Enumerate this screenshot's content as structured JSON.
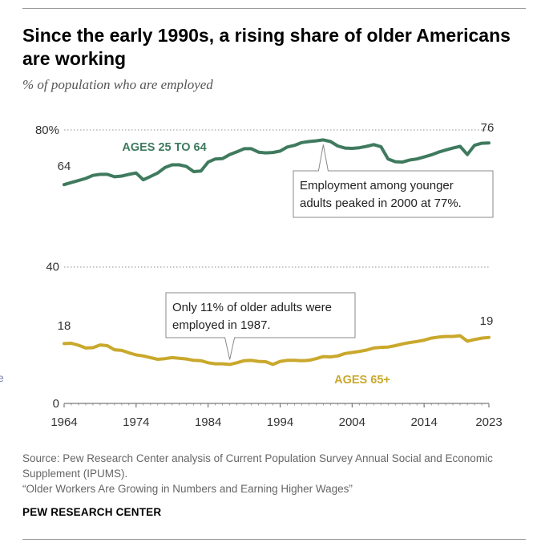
{
  "header": {
    "title": "Since the early 1990s, a rising share of older Americans are working",
    "subtitle": "% of population who are employed"
  },
  "footer": {
    "source_line1": "Source: Pew Research Center analysis of Current Population Survey Annual Social and Economic Supplement (IPUMS).",
    "source_line2": "“Older Workers Are Growing in Numbers and Earning Higher Wages”",
    "brand": "PEW RESEARCH CENTER"
  },
  "stray_glyph": "e",
  "chart_data": {
    "type": "line",
    "xlim": [
      1964,
      2023
    ],
    "ylim": [
      0,
      80
    ],
    "x_ticks": [
      "1964",
      "1974",
      "1984",
      "1994",
      "2004",
      "2014",
      "2023"
    ],
    "y_ticks": [
      "0",
      "40",
      "80%"
    ],
    "y_tick_values": [
      0,
      40,
      80
    ],
    "gridlines_dotted_at": [
      40,
      80
    ],
    "series": [
      {
        "name": "AGES 25 TO 64",
        "color": "#3f7a5e",
        "start_label": "64",
        "end_label": "76",
        "x": [
          1964,
          1965,
          1966,
          1967,
          1968,
          1969,
          1970,
          1971,
          1972,
          1973,
          1974,
          1975,
          1976,
          1977,
          1978,
          1979,
          1980,
          1981,
          1982,
          1983,
          1984,
          1985,
          1986,
          1987,
          1988,
          1989,
          1990,
          1991,
          1992,
          1993,
          1994,
          1995,
          1996,
          1997,
          1998,
          1999,
          2000,
          2001,
          2002,
          2003,
          2004,
          2005,
          2006,
          2007,
          2008,
          2009,
          2010,
          2011,
          2012,
          2013,
          2014,
          2015,
          2016,
          2017,
          2018,
          2019,
          2020,
          2021,
          2022,
          2023
        ],
        "y": [
          64.0,
          64.6,
          65.2,
          65.8,
          66.7,
          67.0,
          67.0,
          66.3,
          66.5,
          67.0,
          67.4,
          65.4,
          66.4,
          67.4,
          69.0,
          69.8,
          69.8,
          69.3,
          67.8,
          68.0,
          70.6,
          71.5,
          71.6,
          72.8,
          73.6,
          74.5,
          74.5,
          73.5,
          73.3,
          73.4,
          73.8,
          75.0,
          75.5,
          76.3,
          76.6,
          76.8,
          77.1,
          76.6,
          75.3,
          74.7,
          74.6,
          74.8,
          75.2,
          75.7,
          75.1,
          71.5,
          70.7,
          70.6,
          71.2,
          71.5,
          72.1,
          72.7,
          73.5,
          74.1,
          74.7,
          75.2,
          72.8,
          75.5,
          76.1,
          76.2
        ]
      },
      {
        "name": "AGES 65+",
        "color": "#c9a82c",
        "start_label": "18",
        "end_label": "19",
        "x": [
          1964,
          1965,
          1966,
          1967,
          1968,
          1969,
          1970,
          1971,
          1972,
          1973,
          1974,
          1975,
          1976,
          1977,
          1978,
          1979,
          1980,
          1981,
          1982,
          1983,
          1984,
          1985,
          1986,
          1987,
          1988,
          1989,
          1990,
          1991,
          1992,
          1993,
          1994,
          1995,
          1996,
          1997,
          1998,
          1999,
          2000,
          2001,
          2002,
          2003,
          2004,
          2005,
          2006,
          2007,
          2008,
          2009,
          2010,
          2011,
          2012,
          2013,
          2014,
          2015,
          2016,
          2017,
          2018,
          2019,
          2020,
          2021,
          2022,
          2023
        ],
        "y": [
          17.5,
          17.6,
          17.0,
          16.2,
          16.3,
          17.1,
          16.9,
          15.7,
          15.5,
          14.8,
          14.2,
          13.9,
          13.4,
          12.9,
          13.1,
          13.4,
          13.2,
          13.0,
          12.6,
          12.5,
          11.9,
          11.6,
          11.6,
          11.4,
          11.9,
          12.5,
          12.6,
          12.3,
          12.2,
          11.4,
          12.3,
          12.6,
          12.6,
          12.5,
          12.6,
          13.1,
          13.7,
          13.6,
          13.9,
          14.6,
          14.9,
          15.2,
          15.6,
          16.2,
          16.4,
          16.5,
          16.9,
          17.4,
          17.8,
          18.1,
          18.5,
          19.1,
          19.4,
          19.6,
          19.6,
          19.8,
          18.2,
          18.7,
          19.1,
          19.3
        ]
      }
    ],
    "annotations": [
      {
        "text_line1": "Employment among younger",
        "text_line2": "adults peaked in 2000 at 77%.",
        "x": 2000,
        "y": 77.1
      },
      {
        "text_line1": "Only 11% of older adults were",
        "text_line2": "employed in 1987.",
        "x": 1987,
        "y": 11.4
      }
    ]
  }
}
